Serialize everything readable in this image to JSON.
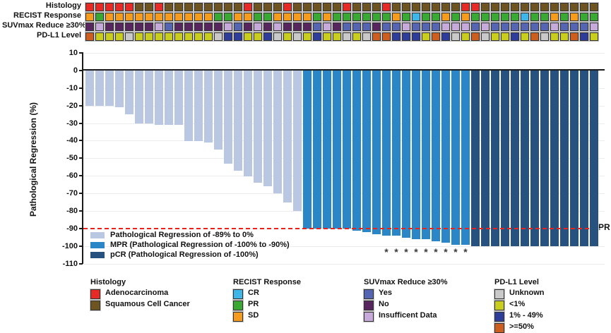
{
  "annotations": {
    "rows": [
      {
        "key": "histology",
        "label": "Histology",
        "codes": "RRRRRBBRBBBBBBBBRBBBRBBBBBRBBBRBBBBBBBRRBBBBBBBBBBBB"
      },
      {
        "key": "recist",
        "label": "RECIST Response",
        "codes": "OGOOOOOOOOOOOGGOOGGOOOOGOGGGGGGOGCGGOGOGGGGGCGGOGOGG"
      },
      {
        "key": "suvmax",
        "label": "SUVmax Reduce ≥30%",
        "codes": "DLDDDDDLUDDDDDLUDLDLDDDULDUUUDUULUUULLLULUUUUUULUUUL"
      },
      {
        "key": "pdl1",
        "label": "PD-L1 Level",
        "codes": "TYYYKYYYYYYYYKNNYYNKYKYNYYKYKTTNNNYTNKYTKYYNYTKYYTNY"
      }
    ],
    "palette": {
      "R": "#e62a25",
      "B": "#6e5420",
      "C": "#3eb6e8",
      "G": "#3aa934",
      "O": "#f59b1e",
      "U": "#5565b1",
      "D": "#58265e",
      "L": "#c6abda",
      "K": "#c9c9c9",
      "Y": "#c9ce1e",
      "N": "#2e3d99",
      "T": "#cc5e20"
    }
  },
  "chart_data": {
    "type": "bar",
    "title": "",
    "ylabel": "Pathological Regression (%)",
    "ylim": [
      -110,
      10
    ],
    "yticks": [
      10,
      0,
      -10,
      -20,
      -30,
      -40,
      -50,
      -60,
      -70,
      -80,
      -90,
      -100,
      -110
    ],
    "values": [
      -20,
      -20,
      -20,
      -21,
      -25,
      -30,
      -30,
      -31,
      -31,
      -31,
      -40,
      -40,
      -41,
      -45,
      -53,
      -57,
      -60,
      -64,
      -66,
      -70,
      -75,
      -80,
      -90,
      -90,
      -90,
      -90,
      -90,
      -91,
      -92,
      -93,
      -94,
      -94,
      -95,
      -96,
      -96,
      -97,
      -98,
      -99,
      -99,
      -100,
      -100,
      -100,
      -100,
      -100,
      -100,
      -100,
      -100,
      -100,
      -100,
      -100,
      -100,
      -100
    ],
    "bar_colors": {
      "light": "#b9c7e3",
      "mpr": "#2b86c7",
      "pcr": "#27517f"
    },
    "class_rule": {
      "pcr_value": -100,
      "mpr_threshold": -90
    },
    "asterisk_columns": [
      31,
      32,
      33,
      34,
      35,
      36,
      37,
      38,
      39
    ],
    "marker": "*",
    "mpr_line": {
      "value": -90,
      "label": "MPR",
      "color": "#e8231c"
    },
    "legend": [
      {
        "class": "light",
        "label": "Pathological Regression of -89% to 0%"
      },
      {
        "class": "mpr",
        "label": "MPR (Pathological Regression of -100% to -90%)"
      },
      {
        "class": "pcr",
        "label": "pCR (Pathological Regression of -100%)"
      }
    ]
  },
  "legends": [
    {
      "title": "Histology",
      "items": [
        {
          "label": "Adenocarcinoma",
          "color": "#e62a25"
        },
        {
          "label": "Squamous Cell Cancer",
          "color": "#6e5420"
        }
      ]
    },
    {
      "title": "RECIST Response",
      "items": [
        {
          "label": "CR",
          "color": "#3eb6e8"
        },
        {
          "label": "PR",
          "color": "#3aa934"
        },
        {
          "label": "SD",
          "color": "#f59b1e"
        }
      ]
    },
    {
      "title": "SUVmax Reduce ≥30%",
      "items": [
        {
          "label": "Yes",
          "color": "#5565b1"
        },
        {
          "label": "No",
          "color": "#58265e"
        },
        {
          "label": "Insufficent Data",
          "color": "#c6abda"
        }
      ]
    },
    {
      "title": "PD-L1 Level",
      "items": [
        {
          "label": "Unknown",
          "color": "#c9c9c9"
        },
        {
          "label": "<1%",
          "color": "#c9ce1e"
        },
        {
          "label": "1% - 49%",
          "color": "#2e3d99"
        },
        {
          "label": ">=50%",
          "color": "#cc5e20"
        }
      ]
    }
  ]
}
